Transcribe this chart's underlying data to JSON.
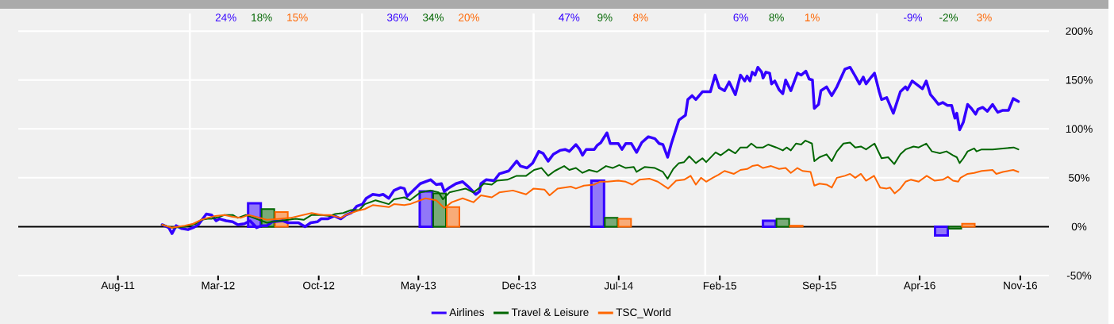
{
  "chart_data": {
    "type": "line",
    "xlim": [
      "2011-01-01",
      "2017-01-01"
    ],
    "ylim": [
      -50,
      218
    ],
    "xticks": [
      {
        "value": "2011-08-01",
        "label": "Aug-11"
      },
      {
        "value": "2012-03-01",
        "label": "Mar-12"
      },
      {
        "value": "2012-10-01",
        "label": "Oct-12"
      },
      {
        "value": "2013-05-01",
        "label": "May-13"
      },
      {
        "value": "2013-12-01",
        "label": "Dec-13"
      },
      {
        "value": "2014-07-01",
        "label": "Jul-14"
      },
      {
        "value": "2015-02-01",
        "label": "Feb-15"
      },
      {
        "value": "2015-09-01",
        "label": "Sep-15"
      },
      {
        "value": "2016-04-01",
        "label": "Apr-16"
      },
      {
        "value": "2016-11-01",
        "label": "Nov-16"
      }
    ],
    "yticks": [
      {
        "value": -50,
        "label": "-50%"
      },
      {
        "value": 0,
        "label": "0%"
      },
      {
        "value": 50,
        "label": "50%"
      },
      {
        "value": 100,
        "label": "100%"
      },
      {
        "value": 150,
        "label": "150%"
      },
      {
        "value": 200,
        "label": "200%"
      }
    ],
    "grid": "y",
    "legend": "bottom",
    "annotations": [
      "24%",
      "18%",
      "15%",
      "36%",
      "34%",
      "20%",
      "47%",
      "9%",
      "8%",
      "6%",
      "8%",
      "1%",
      "-9%",
      "-2%",
      "3%"
    ],
    "ref_lines": [
      {
        "axis": "x",
        "value": "2012-01-01",
        "color": "#ffffff"
      },
      {
        "axis": "x",
        "value": "2013-01-01",
        "color": "#ffffff"
      },
      {
        "axis": "x",
        "value": "2014-01-01",
        "color": "#ffffff"
      },
      {
        "axis": "x",
        "value": "2015-01-01",
        "color": "#ffffff"
      },
      {
        "axis": "x",
        "value": "2016-01-01",
        "color": "#ffffff"
      },
      {
        "axis": "y",
        "value": 0,
        "color": "#000000"
      }
    ],
    "series": [
      {
        "name": "Airlines",
        "color": "#3300ff",
        "x": [
          "2011-11-03",
          "2011-11-17",
          "2011-11-24",
          "2011-12-03",
          "2011-12-15",
          "2011-12-28",
          "2012-01-08",
          "2012-01-19",
          "2012-02-05",
          "2012-02-16",
          "2012-02-26",
          "2012-03-04",
          "2012-03-18",
          "2012-04-01",
          "2012-04-12",
          "2012-04-26",
          "2012-05-08",
          "2012-05-22",
          "2012-06-02",
          "2012-06-13",
          "2012-06-24",
          "2012-07-17",
          "2012-07-28",
          "2012-08-19",
          "2012-09-02",
          "2012-09-14",
          "2012-09-28",
          "2012-10-06",
          "2012-10-20",
          "2012-11-03",
          "2012-11-17",
          "2012-11-28",
          "2012-12-09",
          "2012-12-21",
          "2013-01-02",
          "2013-01-10",
          "2013-01-24",
          "2013-02-07",
          "2013-02-15",
          "2013-02-27",
          "2013-03-10",
          "2013-03-24",
          "2013-04-01",
          "2013-04-07",
          "2013-04-18",
          "2013-05-05",
          "2013-05-27",
          "2013-06-08",
          "2013-06-19",
          "2013-06-25",
          "2013-07-06",
          "2013-07-20",
          "2013-08-03",
          "2013-08-17",
          "2013-08-31",
          "2013-09-08",
          "2013-09-11",
          "2013-09-22",
          "2013-10-09",
          "2013-10-20",
          "2013-11-09",
          "2013-11-26",
          "2013-12-04",
          "2013-12-18",
          "2013-12-30",
          "2014-01-12",
          "2014-01-21",
          "2014-02-01",
          "2014-02-12",
          "2014-02-26",
          "2014-03-09",
          "2014-03-18",
          "2014-04-01",
          "2014-04-09",
          "2014-04-15",
          "2014-04-23",
          "2014-05-10",
          "2014-05-16",
          "2014-05-24",
          "2014-06-06",
          "2014-06-13",
          "2014-06-30",
          "2014-07-08",
          "2014-07-16",
          "2014-07-28",
          "2014-08-08",
          "2014-08-19",
          "2014-09-02",
          "2014-09-16",
          "2014-09-25",
          "2014-10-03",
          "2014-10-13",
          "2014-10-21",
          "2014-11-06",
          "2014-11-20",
          "2014-11-25",
          "2014-12-04",
          "2014-12-12",
          "2014-12-26",
          "2015-01-06",
          "2015-01-12",
          "2015-01-22",
          "2015-01-31",
          "2015-02-11",
          "2015-02-21",
          "2015-03-06",
          "2015-03-17",
          "2015-03-26",
          "2015-03-31",
          "2015-04-06",
          "2015-04-11",
          "2015-04-17",
          "2015-04-23",
          "2015-05-01",
          "2015-05-04",
          "2015-05-10",
          "2015-05-18",
          "2015-05-22",
          "2015-05-29",
          "2015-06-07",
          "2015-06-15",
          "2015-06-21",
          "2015-07-02",
          "2015-07-16",
          "2015-07-24",
          "2015-08-03",
          "2015-08-10",
          "2015-08-17",
          "2015-08-21",
          "2015-08-30",
          "2015-09-04",
          "2015-09-16",
          "2015-09-27",
          "2015-10-08",
          "2015-10-25",
          "2015-11-05",
          "2015-11-16",
          "2015-11-25",
          "2015-12-03",
          "2015-12-09",
          "2015-12-20",
          "2015-12-27",
          "2016-01-06",
          "2016-01-11",
          "2016-01-22",
          "2016-02-05",
          "2016-02-20",
          "2016-03-02",
          "2016-03-06",
          "2016-03-16",
          "2016-03-27",
          "2016-04-07",
          "2016-04-15",
          "2016-04-24",
          "2016-05-03",
          "2016-05-11",
          "2016-05-20",
          "2016-05-30",
          "2016-06-08",
          "2016-06-15",
          "2016-06-19",
          "2016-06-25",
          "2016-07-03",
          "2016-07-12",
          "2016-07-20",
          "2016-07-29",
          "2016-08-03",
          "2016-08-13",
          "2016-08-23",
          "2016-09-03",
          "2016-09-14",
          "2016-09-25",
          "2016-10-07",
          "2016-10-17",
          "2016-10-28"
        ],
        "values": [
          2,
          -1,
          -7,
          1,
          -2,
          -3,
          -1,
          2,
          13,
          12,
          6,
          8,
          6,
          5,
          2,
          3,
          6,
          -1,
          1,
          1,
          5,
          6,
          4,
          4,
          0,
          4,
          5,
          8,
          8,
          11,
          8,
          12,
          14,
          21,
          23,
          29,
          33,
          32,
          33,
          29,
          37,
          40,
          39,
          31,
          36,
          44,
          48,
          43,
          44,
          36,
          40,
          44,
          46,
          40,
          33,
          36,
          44,
          48,
          47,
          54,
          57,
          67,
          62,
          60,
          65,
          77,
          75,
          67,
          74,
          78,
          79,
          77,
          84,
          79,
          73,
          79,
          79,
          83,
          86,
          96,
          85,
          85,
          79,
          85,
          85,
          76,
          86,
          92,
          90,
          85,
          84,
          71,
          85,
          109,
          114,
          130,
          134,
          130,
          138,
          138,
          138,
          155,
          142,
          139,
          148,
          135,
          155,
          149,
          154,
          149,
          158,
          155,
          163,
          158,
          152,
          158,
          157,
          146,
          149,
          140,
          136,
          150,
          139,
          157,
          155,
          159,
          151,
          150,
          121,
          125,
          139,
          143,
          134,
          143,
          161,
          163,
          154,
          146,
          153,
          146,
          153,
          157,
          138,
          130,
          132,
          116,
          138,
          143,
          140,
          149,
          145,
          141,
          149,
          135,
          130,
          125,
          127,
          124,
          124,
          111,
          116,
          99,
          107,
          125,
          121,
          115,
          120,
          122,
          118,
          125,
          117,
          119,
          119,
          131,
          128
        ]
      },
      {
        "name": "Travel & Leisure",
        "color": "#006600",
        "x": [
          "2011-11-03",
          "2011-11-23",
          "2011-12-21",
          "2012-01-14",
          "2012-01-25",
          "2012-02-08",
          "2012-02-16",
          "2012-03-04",
          "2012-03-15",
          "2012-04-01",
          "2012-04-12",
          "2012-04-29",
          "2012-05-10",
          "2012-06-13",
          "2012-06-24",
          "2012-07-28",
          "2012-08-13",
          "2012-08-30",
          "2012-09-16",
          "2012-10-08",
          "2012-10-25",
          "2012-11-05",
          "2012-11-22",
          "2012-12-09",
          "2012-12-26",
          "2013-01-07",
          "2013-01-30",
          "2013-02-27",
          "2013-03-10",
          "2013-04-01",
          "2013-04-13",
          "2013-05-05",
          "2013-05-27",
          "2013-06-13",
          "2013-06-22",
          "2013-07-06",
          "2013-07-23",
          "2013-08-09",
          "2013-08-26",
          "2013-09-06",
          "2013-09-17",
          "2013-10-04",
          "2013-10-15",
          "2013-11-06",
          "2013-11-26",
          "2013-12-16",
          "2014-01-02",
          "2014-01-18",
          "2014-02-01",
          "2014-02-15",
          "2014-03-07",
          "2014-03-18",
          "2014-04-01",
          "2014-04-15",
          "2014-04-29",
          "2014-05-16",
          "2014-06-04",
          "2014-06-18",
          "2014-07-02",
          "2014-07-16",
          "2014-08-02",
          "2014-08-08",
          "2014-08-25",
          "2014-09-16",
          "2014-10-03",
          "2014-10-13",
          "2014-10-25",
          "2014-11-06",
          "2014-11-17",
          "2014-11-28",
          "2014-12-12",
          "2014-12-26",
          "2015-01-03",
          "2015-01-23",
          "2015-02-03",
          "2015-02-20",
          "2015-03-06",
          "2015-03-17",
          "2015-03-31",
          "2015-04-09",
          "2015-04-20",
          "2015-05-04",
          "2015-05-15",
          "2015-06-01",
          "2015-06-15",
          "2015-06-23",
          "2015-07-02",
          "2015-07-13",
          "2015-07-24",
          "2015-08-02",
          "2015-08-16",
          "2015-08-21",
          "2015-09-01",
          "2015-09-16",
          "2015-09-27",
          "2015-10-08",
          "2015-10-22",
          "2015-11-05",
          "2015-11-16",
          "2015-11-28",
          "2015-12-09",
          "2015-12-27",
          "2016-01-11",
          "2016-01-25",
          "2016-02-07",
          "2016-02-20",
          "2016-03-02",
          "2016-03-19",
          "2016-03-30",
          "2016-04-15",
          "2016-04-27",
          "2016-05-14",
          "2016-05-28",
          "2016-06-11",
          "2016-06-19",
          "2016-06-25",
          "2016-07-03",
          "2016-07-12",
          "2016-07-26",
          "2016-07-31",
          "2016-08-11",
          "2016-09-03",
          "2016-09-25",
          "2016-10-18",
          "2016-10-28"
        ],
        "values": [
          2,
          -1,
          0,
          3,
          7,
          8,
          8,
          10,
          12,
          12,
          9,
          12,
          10,
          4,
          5,
          7,
          8,
          7,
          12,
          12,
          11,
          13,
          14,
          17,
          17,
          23,
          27,
          23,
          28,
          30,
          27,
          35,
          37,
          35,
          28,
          35,
          37,
          39,
          35,
          39,
          44,
          43,
          47,
          48,
          52,
          52,
          58,
          60,
          52,
          57,
          62,
          58,
          60,
          55,
          58,
          56,
          62,
          60,
          63,
          60,
          61,
          56,
          61,
          60,
          56,
          49,
          59,
          65,
          66,
          72,
          65,
          70,
          66,
          76,
          73,
          79,
          75,
          81,
          81,
          85,
          81,
          81,
          84,
          81,
          78,
          81,
          78,
          85,
          84,
          88,
          85,
          67,
          71,
          74,
          67,
          77,
          85,
          86,
          81,
          82,
          79,
          85,
          70,
          71,
          64,
          74,
          79,
          82,
          81,
          85,
          77,
          75,
          77,
          73,
          71,
          65,
          70,
          77,
          80,
          77,
          79,
          79,
          80,
          81,
          79
        ]
      },
      {
        "name": "TSC_World",
        "color": "#ff6600",
        "x": [
          "2011-11-03",
          "2011-11-23",
          "2011-12-21",
          "2012-01-08",
          "2012-01-25",
          "2012-02-08",
          "2012-02-24",
          "2012-03-15",
          "2012-04-01",
          "2012-04-18",
          "2012-05-05",
          "2012-06-13",
          "2012-07-11",
          "2012-08-02",
          "2012-09-16",
          "2012-10-08",
          "2012-10-25",
          "2012-11-17",
          "2012-11-28",
          "2012-12-21",
          "2013-01-07",
          "2013-01-24",
          "2013-02-27",
          "2013-03-10",
          "2013-04-01",
          "2013-04-13",
          "2013-05-16",
          "2013-06-08",
          "2013-06-25",
          "2013-07-11",
          "2013-08-03",
          "2013-08-26",
          "2013-09-11",
          "2013-10-04",
          "2013-10-20",
          "2013-11-18",
          "2013-12-16",
          "2014-01-01",
          "2014-01-24",
          "2014-02-04",
          "2014-02-21",
          "2014-03-21",
          "2014-04-01",
          "2014-04-18",
          "2014-05-10",
          "2014-05-22",
          "2014-06-07",
          "2014-06-30",
          "2014-07-16",
          "2014-07-30",
          "2014-08-14",
          "2014-09-05",
          "2014-09-22",
          "2014-10-14",
          "2014-10-31",
          "2014-11-17",
          "2014-12-01",
          "2014-12-12",
          "2014-12-23",
          "2015-01-03",
          "2015-01-17",
          "2015-01-29",
          "2015-02-11",
          "2015-03-03",
          "2015-03-17",
          "2015-03-31",
          "2015-04-11",
          "2015-04-23",
          "2015-05-04",
          "2015-05-21",
          "2015-06-07",
          "2015-06-21",
          "2015-07-02",
          "2015-07-16",
          "2015-07-27",
          "2015-08-13",
          "2015-08-21",
          "2015-09-01",
          "2015-09-16",
          "2015-09-27",
          "2015-10-08",
          "2015-10-25",
          "2015-11-05",
          "2015-11-16",
          "2015-11-28",
          "2015-12-09",
          "2015-12-26",
          "2016-01-08",
          "2016-01-22",
          "2016-01-29",
          "2016-02-08",
          "2016-02-20",
          "2016-03-02",
          "2016-03-13",
          "2016-03-30",
          "2016-04-16",
          "2016-05-03",
          "2016-05-20",
          "2016-05-31",
          "2016-06-11",
          "2016-06-22",
          "2016-06-27",
          "2016-07-12",
          "2016-07-26",
          "2016-08-11",
          "2016-09-03",
          "2016-09-11",
          "2016-09-25",
          "2016-10-17",
          "2016-10-28"
        ],
        "values": [
          2,
          -1,
          1,
          3,
          7,
          9,
          11,
          12,
          10,
          9,
          12,
          7,
          8,
          9,
          14,
          12,
          12,
          9,
          12,
          16,
          18,
          22,
          20,
          23,
          22,
          23,
          29,
          27,
          19,
          25,
          29,
          25,
          32,
          30,
          35,
          37,
          33,
          39,
          38,
          32,
          39,
          41,
          39,
          42,
          43,
          46,
          46,
          47,
          46,
          43,
          48,
          49,
          46,
          39,
          47,
          48,
          52,
          43,
          50,
          46,
          50,
          53,
          57,
          54,
          58,
          59,
          62,
          63,
          60,
          62,
          59,
          60,
          55,
          60,
          57,
          56,
          42,
          44,
          43,
          40,
          50,
          52,
          54,
          50,
          54,
          47,
          52,
          40,
          39,
          40,
          34,
          39,
          46,
          48,
          46,
          52,
          47,
          48,
          51,
          47,
          46,
          50,
          54,
          55,
          57,
          58,
          54,
          56,
          58,
          56
        ]
      },
      {
        "type": "bar",
        "color": "#3300ff",
        "x": [
          "2012-06-15",
          "2013-06-15",
          "2014-06-15",
          "2015-06-15",
          "2016-06-15"
        ],
        "values": [
          24,
          36,
          47,
          6,
          -9
        ]
      },
      {
        "type": "bar",
        "color": "#006600",
        "x": [
          "2012-06-15",
          "2013-06-15",
          "2014-06-15",
          "2015-06-15",
          "2016-06-15"
        ],
        "values": [
          18,
          34,
          9,
          8,
          -2
        ]
      },
      {
        "type": "bar",
        "color": "#ff6600",
        "x": [
          "2012-06-15",
          "2013-06-15",
          "2014-06-15",
          "2015-06-15",
          "2016-06-15"
        ],
        "values": [
          15,
          20,
          8,
          1,
          3
        ]
      }
    ]
  }
}
